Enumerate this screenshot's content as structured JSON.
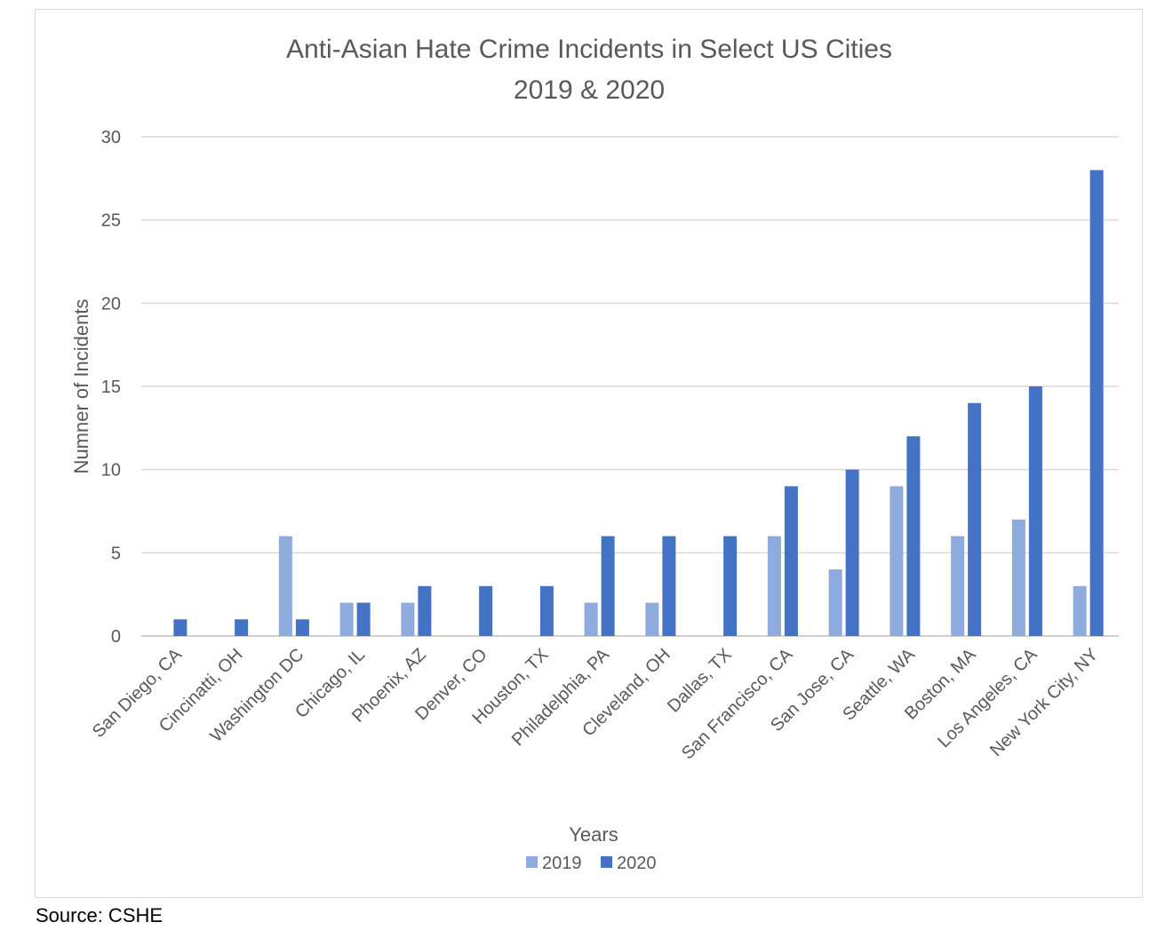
{
  "chart_data": {
    "type": "bar",
    "title": "Anti-Asian Hate Crime Incidents in Select US Cities",
    "subtitle": "2019 & 2020",
    "xlabel": "Years",
    "ylabel": "Numner of Incidents",
    "ylim": [
      0,
      30
    ],
    "yticks": [
      0,
      5,
      10,
      15,
      20,
      25,
      30
    ],
    "grid": true,
    "legend_position": "bottom",
    "categories": [
      "San Diego, CA",
      "Cincinatti, OH",
      "Washington DC",
      "Chicago, IL",
      "Phoenix, AZ",
      "Denver, CO",
      "Houston, TX",
      "Philadelphia, PA",
      "Cleveland, OH",
      "Dallas, TX",
      "San Francisco, CA",
      "San Jose, CA",
      "Seattle, WA",
      "Boston, MA",
      "Los Angeles, CA",
      "New York City, NY"
    ],
    "series": [
      {
        "name": "2019",
        "color": "#8faadc",
        "values": [
          0,
          0,
          6,
          2,
          2,
          0,
          0,
          2,
          2,
          0,
          6,
          4,
          9,
          6,
          7,
          3
        ]
      },
      {
        "name": "2020",
        "color": "#4472c4",
        "values": [
          1,
          1,
          1,
          2,
          3,
          3,
          3,
          6,
          6,
          6,
          9,
          10,
          12,
          14,
          15,
          28
        ]
      }
    ]
  },
  "source": "Source: CSHE"
}
